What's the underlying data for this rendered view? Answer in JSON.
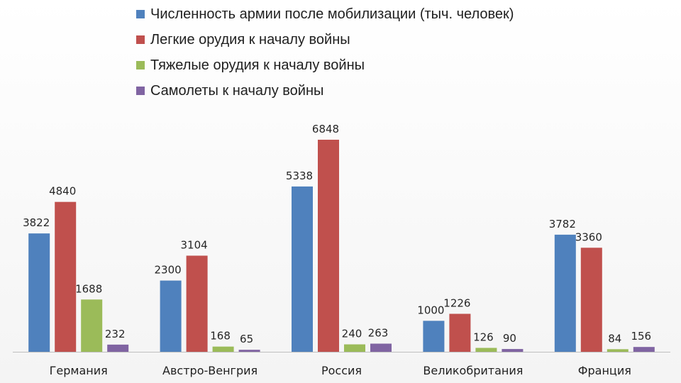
{
  "chart_data": {
    "type": "bar",
    "categories": [
      "Германия",
      "Австро-Венгрия",
      "Россия",
      "Великобритания",
      "Франция"
    ],
    "series": [
      {
        "name": "Численность армии после мобилизации (тыч. человек)",
        "color": "#4f81bd",
        "values": [
          3822,
          2300,
          5338,
          1000,
          3782
        ]
      },
      {
        "name": "Легкие орудия к началу войны",
        "color": "#c0504d",
        "values": [
          4840,
          3104,
          6848,
          1226,
          3360
        ]
      },
      {
        "name": "Тяжелые орудия к началу войны",
        "color": "#9bbb59",
        "values": [
          1688,
          168,
          240,
          126,
          84
        ]
      },
      {
        "name": "Самолеты к началу войны",
        "color": "#8064a2",
        "values": [
          232,
          65,
          263,
          90,
          156
        ]
      }
    ],
    "ylim": [
      0,
      8000
    ],
    "grid": false,
    "legend_position": "top"
  }
}
